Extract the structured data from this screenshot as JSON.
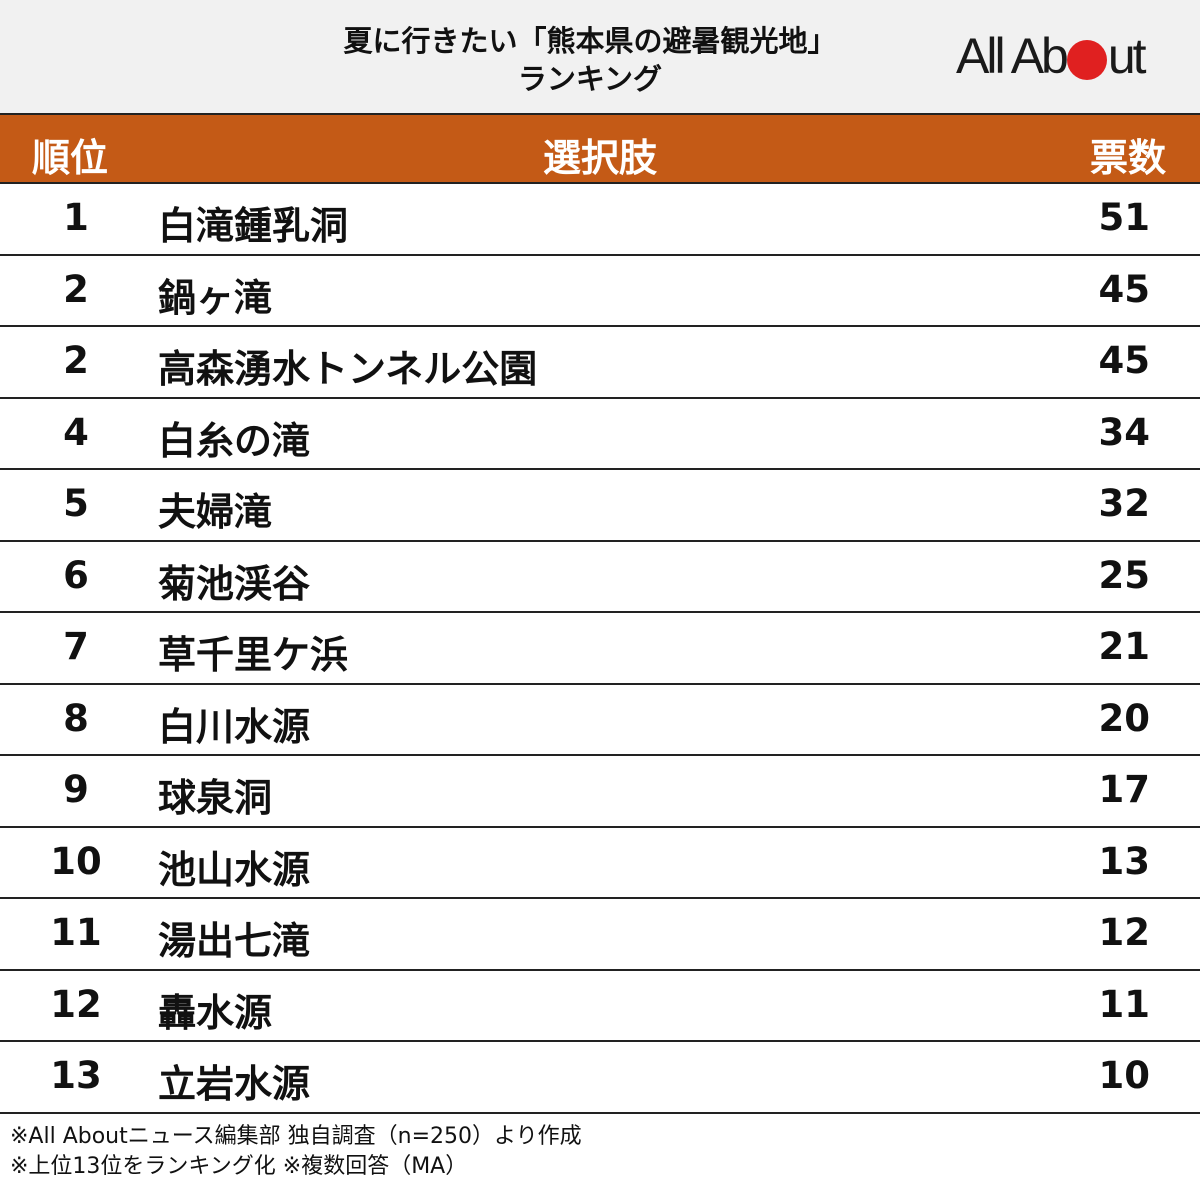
{
  "header": {
    "title_line1": "夏に行きたい「熊本県の避暑観光地」",
    "title_line2": "ランキング",
    "logo": {
      "text_before": "All Ab",
      "text_after": "ut",
      "dot_color": "#e02020"
    }
  },
  "table": {
    "columns": {
      "rank": "順位",
      "choice": "選択肢",
      "votes": "票数"
    },
    "header_color": "#c45a16",
    "rows": [
      {
        "rank": "1",
        "name": "白滝鍾乳洞",
        "votes": "51"
      },
      {
        "rank": "2",
        "name": "鍋ヶ滝",
        "votes": "45"
      },
      {
        "rank": "2",
        "name": "高森湧水トンネル公園",
        "votes": "45"
      },
      {
        "rank": "4",
        "name": "白糸の滝",
        "votes": "34"
      },
      {
        "rank": "5",
        "name": "夫婦滝",
        "votes": "32"
      },
      {
        "rank": "6",
        "name": "菊池渓谷",
        "votes": "25"
      },
      {
        "rank": "7",
        "name": "草千里ケ浜",
        "votes": "21"
      },
      {
        "rank": "8",
        "name": "白川水源",
        "votes": "20"
      },
      {
        "rank": "9",
        "name": "球泉洞",
        "votes": "17"
      },
      {
        "rank": "10",
        "name": "池山水源",
        "votes": "13"
      },
      {
        "rank": "11",
        "name": "湯出七滝",
        "votes": "12"
      },
      {
        "rank": "12",
        "name": "轟水源",
        "votes": "11"
      },
      {
        "rank": "13",
        "name": "立岩水源",
        "votes": "10"
      }
    ]
  },
  "footer": {
    "note1": "※All Aboutニュース編集部 独自調査（n=250）より作成",
    "note2": "※上位13位をランキング化 ※複数回答（MA）"
  },
  "chart_data": {
    "type": "table",
    "title": "夏に行きたい「熊本県の避暑観光地」ランキング",
    "columns": [
      "順位",
      "選択肢",
      "票数"
    ],
    "categories": [
      "白滝鍾乳洞",
      "鍋ヶ滝",
      "高森湧水トンネル公園",
      "白糸の滝",
      "夫婦滝",
      "菊池渓谷",
      "草千里ケ浜",
      "白川水源",
      "球泉洞",
      "池山水源",
      "湯出七滝",
      "轟水源",
      "立岩水源"
    ],
    "ranks": [
      1,
      2,
      2,
      4,
      5,
      6,
      7,
      8,
      9,
      10,
      11,
      12,
      13
    ],
    "values": [
      51,
      45,
      45,
      34,
      32,
      25,
      21,
      20,
      17,
      13,
      12,
      11,
      10
    ],
    "notes": [
      "※All Aboutニュース編集部 独自調査（n=250）より作成",
      "※上位13位をランキング化 ※複数回答（MA）"
    ]
  }
}
